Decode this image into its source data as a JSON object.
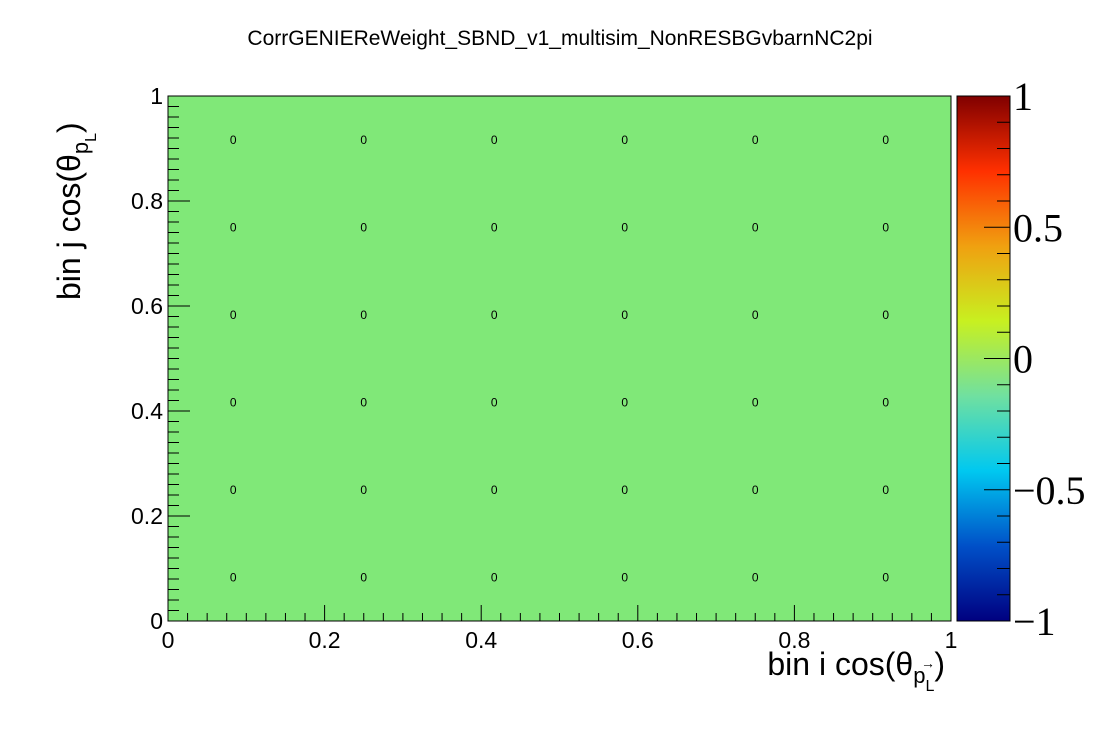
{
  "chart_data": {
    "type": "heatmap",
    "title": "CorrGENIEReWeight_SBND_v1_multisim_NonRESBGvbarnNC2pi",
    "xlabel": {
      "main": "bin i cos(θ",
      "sub": "p",
      "subsub": "L",
      "close": ")"
    },
    "ylabel": {
      "main": "bin j cos(θ",
      "sub": "p",
      "subsub": "L",
      "close": ")"
    },
    "xlim": [
      0,
      1
    ],
    "ylim": [
      0,
      1
    ],
    "x_ticks": [
      "0",
      "0.2",
      "0.4",
      "0.6",
      "0.8",
      "1"
    ],
    "y_ticks": [
      "0",
      "0.2",
      "0.4",
      "0.6",
      "0.8",
      "1"
    ],
    "x_bins": 6,
    "y_bins": 6,
    "values": [
      [
        0,
        0,
        0,
        0,
        0,
        0
      ],
      [
        0,
        0,
        0,
        0,
        0,
        0
      ],
      [
        0,
        0,
        0,
        0,
        0,
        0
      ],
      [
        0,
        0,
        0,
        0,
        0,
        0
      ],
      [
        0,
        0,
        0,
        0,
        0,
        0
      ],
      [
        0,
        0,
        0,
        0,
        0,
        0
      ]
    ],
    "cell_labels": [
      [
        "0",
        "0",
        "0",
        "0",
        "0",
        "0"
      ],
      [
        "0",
        "0",
        "0",
        "0",
        "0",
        "0"
      ],
      [
        "0",
        "0",
        "0",
        "0",
        "0",
        "0"
      ],
      [
        "0",
        "0",
        "0",
        "0",
        "0",
        "0"
      ],
      [
        "0",
        "0",
        "0",
        "0",
        "0",
        "0"
      ],
      [
        "0",
        "0",
        "0",
        "0",
        "0",
        "0"
      ]
    ],
    "zlim": [
      -1,
      1
    ],
    "z_ticks": [
      {
        "value": 1,
        "label": "1"
      },
      {
        "value": 0.5,
        "label": "0.5"
      },
      {
        "value": 0,
        "label": "0"
      },
      {
        "value": -0.5,
        "label": "−0.5"
      },
      {
        "value": -1,
        "label": "−1"
      }
    ],
    "colormap": [
      "#000080",
      "#0050c8",
      "#00c8f0",
      "#70e0a0",
      "#c8f020",
      "#f0a010",
      "#ff3000",
      "#800000"
    ],
    "cell_color": "#80e878",
    "grid": false,
    "legend": "colorbar-right"
  }
}
